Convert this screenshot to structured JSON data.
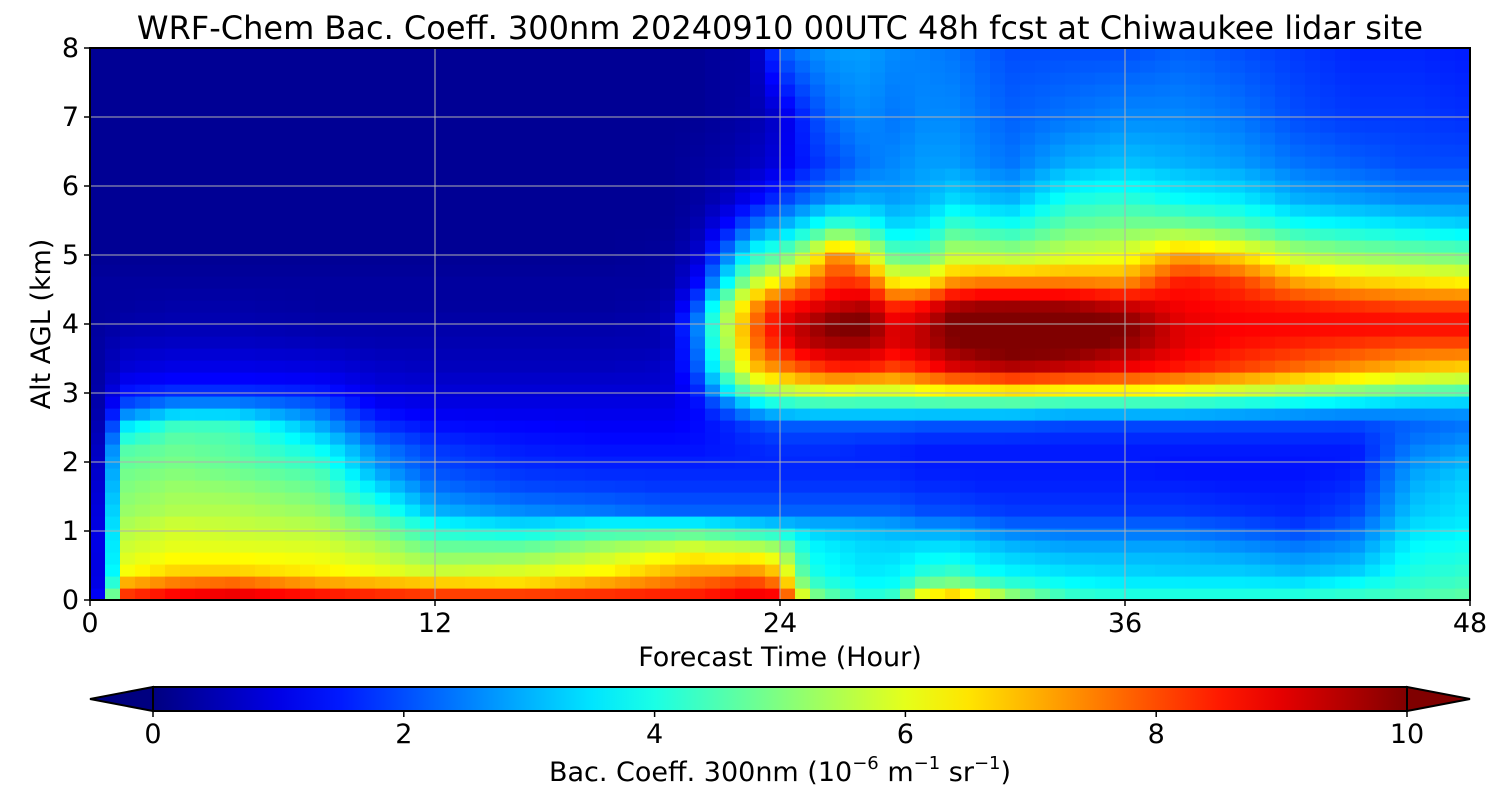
{
  "chart_data": {
    "type": "heatmap",
    "title": "WRF-Chem Bac. Coeff. 300nm  20240910 00UTC 48h fcst at Chiwaukee lidar site",
    "xlabel": "Forecast Time (Hour)",
    "ylabel": "Alt AGL (km)",
    "xlim": [
      0,
      48
    ],
    "ylim": [
      0,
      8
    ],
    "xticks": [
      "0",
      "12",
      "24",
      "36",
      "48"
    ],
    "yticks": [
      "0",
      "1",
      "2",
      "3",
      "4",
      "5",
      "6",
      "7",
      "8"
    ],
    "grid": true,
    "colorbar": {
      "label_prefix": "Bac. Coeff. 300nm  (10",
      "label_exp1": "−6",
      "label_mid": " m",
      "label_exp2": "−1",
      "label_mid2": " sr",
      "label_exp3": "−1",
      "label_suffix": ")",
      "range": [
        0,
        10
      ],
      "ticks": [
        "0",
        "2",
        "4",
        "6",
        "8",
        "10"
      ],
      "colormap": "jet",
      "extend": "both"
    },
    "field": {
      "x_hours": [
        0,
        0.6,
        1,
        3,
        5,
        8,
        10,
        12,
        15,
        18,
        20,
        21,
        22,
        23,
        24,
        25,
        26,
        27,
        28,
        29,
        30,
        31,
        32,
        34,
        36,
        38,
        40,
        42,
        44,
        46,
        48
      ],
      "z_km": [
        0,
        0.1,
        0.25,
        0.45,
        0.7,
        0.9,
        1.1,
        1.3,
        1.6,
        1.9,
        2.2,
        2.5,
        2.8,
        3.1,
        3.4,
        3.7,
        4.0,
        4.3,
        4.6,
        5.0,
        5.4,
        5.8,
        6.3,
        7.0,
        8.0
      ],
      "values": [
        [
          0.5,
          0.5,
          0.4,
          0.4,
          0.4,
          0.4,
          0.3,
          0.3,
          0.3,
          0.3,
          0.3,
          0.3,
          0.3,
          0.3,
          0.3,
          0.3,
          0.3,
          0.3,
          0.3,
          0.2,
          0.2,
          0.2,
          0.2,
          0.2,
          0.2
        ],
        [
          2.0,
          2.0,
          1.8,
          1.7,
          1.7,
          1.8,
          1.8,
          1.7,
          1.5,
          1.3,
          1.1,
          0.8,
          0.6,
          0.5,
          0.4,
          0.4,
          0.3,
          0.3,
          0.3,
          0.2,
          0.2,
          0.2,
          0.2,
          0.2,
          0.2
        ],
        [
          9.0,
          8.0,
          7.0,
          6.0,
          5.8,
          5.6,
          5.4,
          5.2,
          5.0,
          4.8,
          4.5,
          3.5,
          2.0,
          1.2,
          0.8,
          0.6,
          0.4,
          0.3,
          0.3,
          0.2,
          0.2,
          0.2,
          0.2,
          0.2,
          0.2
        ],
        [
          9.6,
          8.6,
          7.6,
          6.6,
          6.1,
          5.9,
          5.8,
          5.5,
          5.3,
          5.0,
          4.8,
          4.5,
          2.8,
          1.4,
          1.0,
          0.7,
          0.5,
          0.4,
          0.3,
          0.2,
          0.2,
          0.2,
          0.2,
          0.2,
          0.2
        ],
        [
          9.6,
          8.8,
          7.8,
          6.6,
          6.1,
          5.8,
          5.7,
          5.5,
          5.2,
          4.8,
          4.6,
          4.4,
          2.8,
          1.4,
          1.0,
          0.7,
          0.5,
          0.4,
          0.3,
          0.2,
          0.2,
          0.2,
          0.2,
          0.2,
          0.2
        ],
        [
          9.4,
          8.4,
          7.2,
          6.3,
          6.0,
          5.7,
          5.5,
          5.2,
          4.8,
          4.4,
          3.8,
          3.0,
          2.2,
          1.3,
          0.9,
          0.6,
          0.4,
          0.3,
          0.3,
          0.2,
          0.2,
          0.2,
          0.2,
          0.2,
          0.2
        ],
        [
          9.2,
          8.2,
          7.0,
          6.0,
          5.6,
          5.2,
          4.8,
          4.3,
          3.5,
          2.8,
          2.5,
          1.8,
          1.2,
          0.9,
          0.7,
          0.5,
          0.4,
          0.3,
          0.3,
          0.2,
          0.2,
          0.2,
          0.2,
          0.2,
          0.2
        ],
        [
          9.0,
          8.0,
          6.8,
          5.6,
          5.0,
          4.4,
          3.8,
          3.0,
          2.4,
          2.0,
          1.8,
          1.4,
          1.0,
          0.8,
          0.6,
          0.5,
          0.4,
          0.3,
          0.3,
          0.2,
          0.2,
          0.2,
          0.2,
          0.2,
          0.2
        ],
        [
          9.0,
          8.0,
          6.6,
          5.8,
          5.0,
          4.2,
          3.4,
          2.6,
          2.0,
          1.7,
          1.5,
          1.3,
          1.0,
          0.8,
          0.6,
          0.5,
          0.4,
          0.3,
          0.3,
          0.2,
          0.2,
          0.2,
          0.2,
          0.2,
          0.2
        ],
        [
          8.8,
          8.2,
          7.2,
          6.2,
          5.6,
          4.8,
          3.8,
          2.4,
          1.9,
          1.6,
          1.4,
          1.2,
          1.0,
          0.8,
          0.6,
          0.5,
          0.4,
          0.3,
          0.3,
          0.2,
          0.2,
          0.2,
          0.2,
          0.2,
          0.2
        ],
        [
          8.6,
          8.4,
          7.6,
          6.8,
          6.0,
          5.0,
          3.8,
          2.2,
          1.8,
          1.6,
          1.4,
          1.2,
          1.0,
          0.8,
          0.7,
          0.5,
          0.5,
          0.4,
          0.3,
          0.3,
          0.2,
          0.2,
          0.2,
          0.2,
          0.2
        ],
        [
          8.6,
          8.4,
          7.8,
          7.0,
          6.2,
          5.2,
          3.8,
          2.2,
          1.8,
          1.6,
          1.4,
          1.3,
          1.2,
          1.4,
          1.8,
          2.0,
          2.2,
          1.6,
          1.0,
          0.6,
          0.4,
          0.3,
          0.3,
          0.2,
          0.2
        ],
        [
          8.8,
          8.6,
          8.0,
          7.0,
          6.0,
          5.0,
          3.6,
          2.2,
          1.8,
          1.6,
          1.5,
          1.5,
          2.0,
          3.6,
          4.6,
          5.0,
          5.2,
          4.8,
          3.4,
          2.2,
          1.2,
          0.6,
          0.4,
          0.3,
          0.3
        ],
        [
          9.0,
          8.8,
          8.2,
          7.2,
          6.0,
          4.8,
          3.4,
          2.2,
          1.8,
          1.6,
          1.6,
          1.8,
          3.0,
          5.4,
          6.8,
          7.4,
          7.6,
          7.0,
          5.6,
          4.0,
          2.4,
          1.2,
          0.6,
          0.4,
          0.3
        ],
        [
          9.2,
          8.6,
          7.6,
          6.6,
          5.6,
          4.6,
          3.2,
          2.2,
          1.8,
          1.6,
          1.7,
          2.0,
          3.6,
          6.0,
          7.6,
          8.6,
          9.0,
          8.4,
          6.6,
          4.6,
          3.0,
          1.8,
          1.0,
          0.8,
          2.2
        ],
        [
          5.6,
          5.0,
          4.4,
          4.0,
          3.8,
          3.6,
          3.0,
          2.2,
          1.8,
          1.6,
          1.7,
          2.0,
          3.8,
          6.4,
          8.2,
          9.4,
          9.6,
          8.8,
          7.6,
          5.8,
          3.8,
          2.4,
          1.6,
          1.8,
          2.6
        ],
        [
          4.6,
          4.4,
          4.0,
          3.7,
          3.6,
          3.4,
          3.0,
          2.2,
          1.8,
          1.6,
          1.7,
          2.0,
          3.8,
          6.6,
          8.6,
          9.6,
          10.2,
          9.2,
          8.4,
          7.6,
          4.6,
          2.8,
          2.0,
          2.4,
          2.8
        ],
        [
          4.2,
          4.0,
          3.7,
          3.5,
          3.4,
          3.3,
          2.9,
          2.2,
          1.8,
          1.6,
          1.6,
          2.0,
          3.8,
          6.4,
          8.6,
          9.6,
          10.2,
          9.4,
          8.2,
          6.4,
          4.2,
          3.0,
          2.4,
          2.6,
          2.8
        ],
        [
          4.6,
          4.2,
          3.8,
          3.6,
          3.4,
          3.2,
          2.8,
          2.2,
          1.8,
          1.6,
          1.6,
          2.0,
          3.8,
          6.4,
          8.2,
          9.0,
          9.0,
          8.2,
          6.4,
          4.6,
          3.4,
          2.8,
          2.6,
          2.4,
          2.6
        ],
        [
          7.2,
          6.0,
          4.8,
          4.0,
          3.6,
          3.2,
          2.6,
          2.0,
          1.7,
          1.5,
          1.5,
          1.9,
          3.8,
          6.8,
          8.6,
          9.4,
          9.4,
          8.6,
          6.4,
          4.6,
          3.6,
          3.0,
          2.8,
          2.6,
          2.5
        ],
        [
          7.8,
          6.4,
          5.0,
          4.2,
          3.6,
          3.2,
          2.6,
          2.0,
          1.7,
          1.5,
          1.5,
          1.9,
          3.8,
          7.0,
          9.2,
          9.9,
          10.2,
          9.4,
          7.4,
          5.6,
          4.4,
          3.4,
          2.8,
          2.6,
          2.4
        ],
        [
          7.0,
          5.8,
          4.6,
          3.8,
          3.4,
          3.0,
          2.4,
          1.9,
          1.6,
          1.5,
          1.5,
          1.9,
          3.8,
          7.0,
          9.4,
          10.2,
          10.4,
          9.6,
          7.6,
          5.6,
          4.2,
          3.2,
          2.6,
          2.4,
          2.2
        ],
        [
          5.8,
          5.0,
          4.2,
          3.6,
          3.2,
          2.8,
          2.2,
          1.8,
          1.6,
          1.5,
          1.5,
          1.9,
          3.8,
          7.2,
          9.6,
          10.3,
          10.5,
          9.6,
          7.6,
          5.4,
          4.0,
          3.0,
          2.4,
          2.2,
          2.0
        ],
        [
          4.6,
          4.2,
          3.8,
          3.4,
          3.0,
          2.6,
          2.2,
          1.8,
          1.6,
          1.5,
          1.5,
          1.8,
          3.6,
          7.0,
          9.4,
          10.3,
          10.4,
          9.6,
          7.6,
          5.8,
          4.8,
          4.0,
          3.0,
          2.4,
          2.0
        ],
        [
          4.2,
          4.0,
          3.6,
          3.3,
          3.0,
          2.6,
          2.2,
          1.8,
          1.6,
          1.5,
          1.5,
          1.8,
          3.6,
          7.0,
          9.0,
          9.8,
          10.1,
          9.2,
          7.4,
          6.0,
          5.0,
          4.2,
          3.2,
          2.6,
          2.0
        ],
        [
          4.2,
          4.0,
          3.6,
          3.2,
          3.0,
          2.6,
          2.2,
          1.8,
          1.6,
          1.4,
          1.5,
          1.8,
          3.6,
          6.8,
          8.6,
          9.0,
          9.0,
          8.8,
          8.6,
          7.2,
          5.0,
          3.8,
          3.0,
          2.6,
          2.2
        ],
        [
          4.2,
          4.0,
          3.6,
          3.2,
          2.8,
          2.4,
          2.0,
          1.7,
          1.5,
          1.4,
          1.5,
          1.8,
          3.4,
          6.4,
          8.2,
          8.6,
          8.8,
          8.6,
          8.2,
          6.6,
          4.6,
          3.6,
          2.8,
          2.4,
          2.0
        ],
        [
          4.4,
          4.0,
          3.5,
          3.0,
          2.6,
          2.2,
          1.8,
          1.6,
          1.5,
          1.4,
          1.5,
          1.8,
          3.2,
          6.0,
          7.8,
          8.4,
          8.8,
          8.4,
          7.2,
          5.6,
          4.0,
          3.0,
          2.4,
          2.0,
          1.8
        ],
        [
          4.4,
          4.2,
          3.8,
          3.2,
          2.8,
          2.5,
          2.2,
          1.9,
          1.7,
          1.5,
          1.5,
          1.8,
          3.0,
          5.6,
          7.4,
          8.2,
          8.8,
          8.2,
          6.8,
          5.2,
          3.8,
          2.8,
          2.2,
          1.8,
          1.6
        ],
        [
          4.6,
          4.4,
          4.2,
          4.0,
          3.8,
          3.6,
          3.4,
          3.2,
          3.0,
          2.8,
          2.5,
          2.2,
          2.8,
          5.2,
          7.0,
          8.0,
          8.8,
          8.0,
          6.6,
          5.0,
          3.6,
          2.6,
          2.0,
          1.8,
          1.6
        ],
        [
          4.8,
          4.6,
          4.4,
          4.2,
          4.0,
          3.8,
          3.6,
          3.5,
          3.4,
          3.2,
          2.8,
          2.4,
          2.8,
          5.0,
          6.8,
          8.0,
          8.8,
          8.0,
          6.4,
          4.8,
          3.4,
          2.6,
          2.0,
          1.7,
          1.5
        ]
      ]
    }
  }
}
